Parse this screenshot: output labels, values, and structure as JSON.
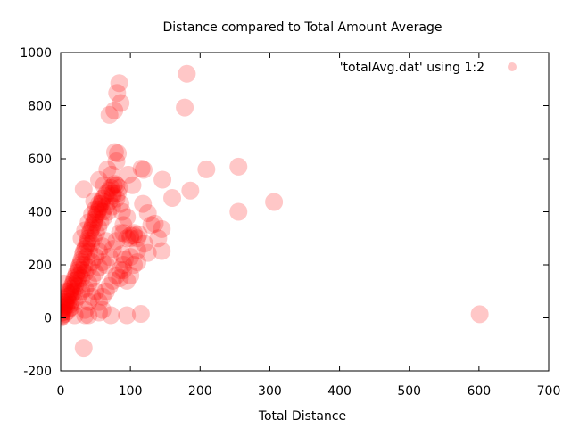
{
  "chart_data": {
    "type": "scatter",
    "title": "Distance compared to Total Amount Average",
    "xlabel": "Total Distance",
    "ylabel": "",
    "xlim": [
      0,
      700
    ],
    "ylim": [
      -200,
      1000
    ],
    "xticks": [
      "0",
      "100",
      "200",
      "300",
      "400",
      "500",
      "600",
      "700"
    ],
    "yticks": [
      "-200",
      "0",
      "200",
      "400",
      "600",
      "800",
      "1000"
    ],
    "grid": false,
    "legend_position": "top-right",
    "series": [
      {
        "name": "'totalAvg.dat' using 1:2",
        "color": "#ff0000",
        "marker": "circle",
        "opacity": 0.22,
        "points": [
          [
            0,
            0
          ],
          [
            1,
            5
          ],
          [
            2,
            10
          ],
          [
            3,
            20
          ],
          [
            4,
            30
          ],
          [
            5,
            40
          ],
          [
            6,
            50
          ],
          [
            7,
            60
          ],
          [
            8,
            45
          ],
          [
            9,
            70
          ],
          [
            10,
            80
          ],
          [
            11,
            60
          ],
          [
            12,
            90
          ],
          [
            13,
            100
          ],
          [
            14,
            85
          ],
          [
            15,
            110
          ],
          [
            16,
            120
          ],
          [
            17,
            95
          ],
          [
            18,
            130
          ],
          [
            19,
            140
          ],
          [
            20,
            150
          ],
          [
            21,
            125
          ],
          [
            22,
            160
          ],
          [
            23,
            170
          ],
          [
            24,
            145
          ],
          [
            25,
            180
          ],
          [
            26,
            190
          ],
          [
            27,
            160
          ],
          [
            28,
            200
          ],
          [
            29,
            210
          ],
          [
            30,
            220
          ],
          [
            31,
            180
          ],
          [
            32,
            240
          ],
          [
            33,
            250
          ],
          [
            34,
            200
          ],
          [
            35,
            260
          ],
          [
            36,
            270
          ],
          [
            37,
            230
          ],
          [
            38,
            280
          ],
          [
            39,
            290
          ],
          [
            40,
            300
          ],
          [
            41,
            250
          ],
          [
            42,
            320
          ],
          [
            43,
            330
          ],
          [
            44,
            280
          ],
          [
            45,
            340
          ],
          [
            46,
            350
          ],
          [
            47,
            300
          ],
          [
            48,
            360
          ],
          [
            49,
            370
          ],
          [
            50,
            380
          ],
          [
            51,
            320
          ],
          [
            52,
            390
          ],
          [
            53,
            400
          ],
          [
            54,
            340
          ],
          [
            55,
            410
          ],
          [
            56,
            420
          ],
          [
            57,
            360
          ],
          [
            58,
            430
          ],
          [
            59,
            440
          ],
          [
            60,
            450
          ],
          [
            62,
            380
          ],
          [
            64,
            460
          ],
          [
            66,
            470
          ],
          [
            68,
            400
          ],
          [
            70,
            480
          ],
          [
            72,
            490
          ],
          [
            74,
            420
          ],
          [
            76,
            500
          ],
          [
            78,
            505
          ],
          [
            80,
            450
          ],
          [
            82,
            470
          ],
          [
            84,
            490
          ],
          [
            86,
            430
          ],
          [
            88,
            400
          ],
          [
            90,
            320
          ],
          [
            95,
            300
          ],
          [
            100,
            310
          ],
          [
            105,
            320
          ],
          [
            110,
            300
          ],
          [
            20,
            100
          ],
          [
            25,
            120
          ],
          [
            30,
            150
          ],
          [
            35,
            170
          ],
          [
            40,
            190
          ],
          [
            45,
            210
          ],
          [
            50,
            230
          ],
          [
            55,
            250
          ],
          [
            60,
            270
          ],
          [
            65,
            290
          ],
          [
            30,
            300
          ],
          [
            35,
            330
          ],
          [
            40,
            360
          ],
          [
            45,
            390
          ],
          [
            50,
            410
          ],
          [
            55,
            430
          ],
          [
            60,
            400
          ],
          [
            65,
            420
          ],
          [
            70,
            440
          ],
          [
            75,
            460
          ],
          [
            15,
            40
          ],
          [
            20,
            60
          ],
          [
            25,
            80
          ],
          [
            30,
            100
          ],
          [
            35,
            110
          ],
          [
            40,
            130
          ],
          [
            45,
            150
          ],
          [
            50,
            170
          ],
          [
            55,
            190
          ],
          [
            60,
            210
          ],
          [
            33,
            485
          ],
          [
            48,
            440
          ],
          [
            55,
            520
          ],
          [
            62,
            500
          ],
          [
            75,
            470
          ],
          [
            80,
            500
          ],
          [
            35,
            30
          ],
          [
            40,
            60
          ],
          [
            45,
            80
          ],
          [
            50,
            100
          ],
          [
            67,
            560
          ],
          [
            84,
            885
          ],
          [
            81,
            848
          ],
          [
            86,
            810
          ],
          [
            77,
            782
          ],
          [
            70,
            765
          ],
          [
            78,
            625
          ],
          [
            82,
            620
          ],
          [
            80,
            590
          ],
          [
            73,
            540
          ],
          [
            181,
            920
          ],
          [
            178,
            793
          ],
          [
            116,
            563
          ],
          [
            119,
            558
          ],
          [
            146,
            521
          ],
          [
            209,
            560
          ],
          [
            255,
            570
          ],
          [
            186,
            480
          ],
          [
            160,
            452
          ],
          [
            255,
            400
          ],
          [
            306,
            437
          ],
          [
            97,
            540
          ],
          [
            103,
            500
          ],
          [
            118,
            430
          ],
          [
            125,
            395
          ],
          [
            135,
            355
          ],
          [
            130,
            350
          ],
          [
            145,
            335
          ],
          [
            140,
            300
          ],
          [
            120,
            280
          ],
          [
            145,
            252
          ],
          [
            110,
            255
          ],
          [
            125,
            245
          ],
          [
            100,
            230
          ],
          [
            105,
            200
          ],
          [
            110,
            210
          ],
          [
            90,
            180
          ],
          [
            100,
            160
          ],
          [
            85,
            150
          ],
          [
            95,
            140
          ],
          [
            33,
            -113
          ],
          [
            601,
            14
          ],
          [
            115,
            15
          ],
          [
            95,
            10
          ],
          [
            72,
            10
          ],
          [
            35,
            10
          ],
          [
            20,
            10
          ],
          [
            40,
            10
          ],
          [
            55,
            20
          ],
          [
            60,
            30
          ],
          [
            5,
            130
          ],
          [
            8,
            100
          ],
          [
            2,
            60
          ],
          [
            3,
            40
          ],
          [
            1,
            20
          ],
          [
            6,
            15
          ],
          [
            10,
            25
          ],
          [
            12,
            35
          ],
          [
            14,
            50
          ],
          [
            16,
            65
          ],
          [
            65,
            200
          ],
          [
            70,
            230
          ],
          [
            75,
            260
          ],
          [
            80,
            290
          ],
          [
            85,
            320
          ],
          [
            90,
            350
          ],
          [
            95,
            380
          ],
          [
            100,
            300
          ],
          [
            105,
            310
          ],
          [
            112,
            315
          ],
          [
            55,
            60
          ],
          [
            60,
            80
          ],
          [
            65,
            100
          ],
          [
            70,
            120
          ],
          [
            75,
            140
          ],
          [
            80,
            160
          ],
          [
            85,
            180
          ],
          [
            90,
            200
          ],
          [
            92,
            220
          ],
          [
            88,
            240
          ]
        ]
      }
    ]
  }
}
